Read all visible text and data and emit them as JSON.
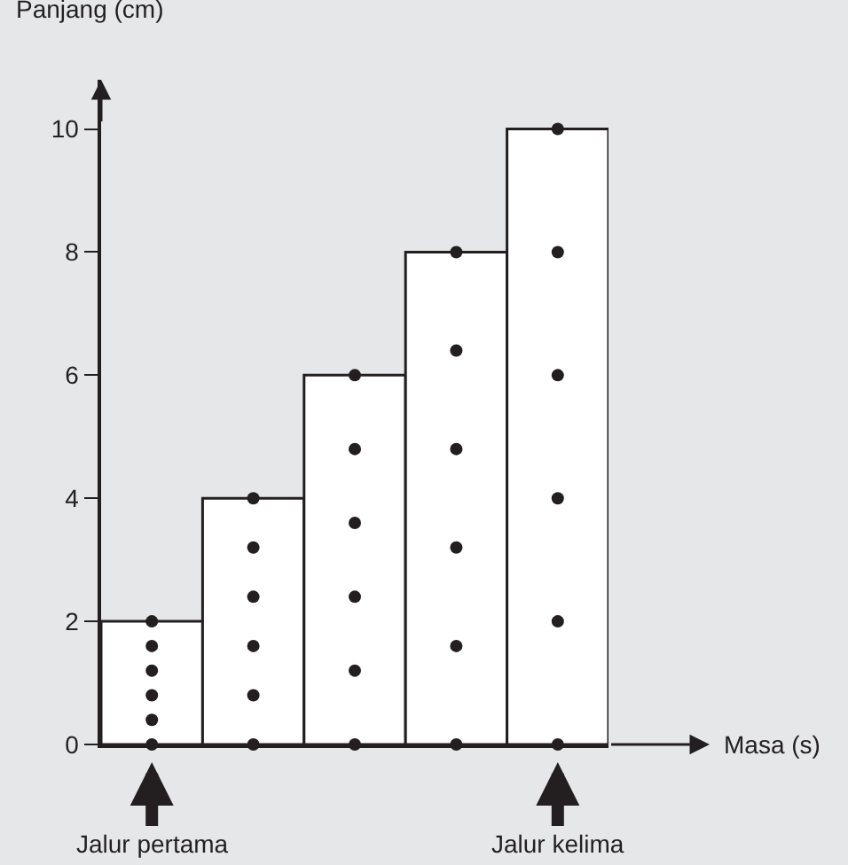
{
  "chart_data": {
    "type": "bar",
    "xlabel": "Masa (s)",
    "ylabel": "Panjang (cm)",
    "categories": [
      null,
      null,
      null,
      null,
      null
    ],
    "series": [
      {
        "color": "#ffffff",
        "values": [
          2,
          4,
          6,
          8,
          10
        ]
      },
      {
        "type": "scatter",
        "color": "#231f20",
        "values": [
          0,
          0,
          0,
          0,
          0
        ]
      },
      {
        "type": "scatter",
        "color": "#231f20",
        "values": [
          0.4,
          0.8,
          1.2,
          1.6,
          2
        ]
      },
      {
        "type": "scatter",
        "color": "#231f20",
        "values": [
          0.8,
          1.6,
          2.4,
          3.2,
          4
        ]
      },
      {
        "type": "scatter",
        "color": "#231f20",
        "values": [
          1.2,
          2.4,
          3.6,
          4.8,
          6
        ]
      },
      {
        "type": "scatter",
        "color": "#231f20",
        "values": [
          1.6,
          3.2,
          4.8,
          6.4,
          8
        ]
      },
      {
        "type": "scatter",
        "color": "#231f20",
        "values": [
          2,
          4,
          6,
          8,
          10
        ]
      }
    ],
    "marker": "circle",
    "ylim": [
      0,
      10.8
    ],
    "yticks": [
      0,
      2,
      4,
      6,
      8,
      10
    ],
    "tick_labels": "y",
    "annotations": [
      "Jalur pertama",
      "Jalur kelima"
    ]
  }
}
